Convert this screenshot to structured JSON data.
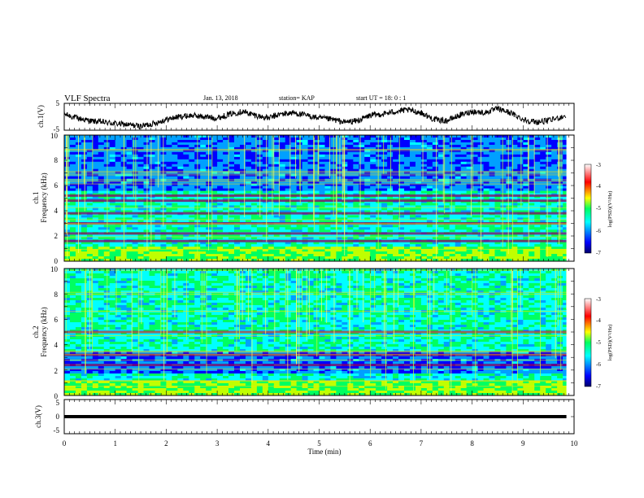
{
  "header": {
    "title": "VLF Spectra",
    "date": "Jan. 13, 2018",
    "station": "station= KAP",
    "start": "start UT =  18: 0  : 1"
  },
  "chart_data": [
    {
      "type": "line",
      "panel": "ch1-amplitude",
      "ylabel": "ch.1(V)",
      "xlim": [
        0,
        10
      ],
      "ylim": [
        -5,
        5
      ],
      "yticks": [
        "5",
        "-5"
      ],
      "x": [
        0.0,
        0.25,
        0.5,
        0.75,
        1.0,
        1.25,
        1.5,
        1.75,
        2.0,
        2.25,
        2.5,
        2.75,
        3.0,
        3.25,
        3.5,
        3.75,
        4.0,
        4.25,
        4.5,
        4.75,
        5.0,
        5.25,
        5.5,
        5.75,
        6.0,
        6.25,
        6.5,
        6.75,
        7.0,
        7.25,
        7.5,
        7.75,
        8.0,
        8.25,
        8.5,
        8.75,
        9.0,
        9.25,
        9.5,
        9.85
      ],
      "y": [
        1.0,
        -0.5,
        -1.5,
        -2.0,
        -2.5,
        -3.0,
        -3.5,
        -2.5,
        -1.0,
        0.0,
        0.5,
        0.0,
        -0.5,
        1.0,
        2.0,
        0.5,
        -0.5,
        1.0,
        1.5,
        0.5,
        -0.5,
        -1.0,
        -2.0,
        -1.5,
        0.5,
        1.0,
        2.0,
        2.5,
        1.5,
        -1.0,
        -1.5,
        0.5,
        2.0,
        1.5,
        3.0,
        1.5,
        -1.0,
        -2.0,
        -1.5,
        0.5
      ]
    },
    {
      "type": "heatmap",
      "panel": "ch1-spectrogram",
      "ylabel_top": "ch.1",
      "ylabel": "Frequency (kHz)",
      "xlim": [
        0,
        10
      ],
      "ylim": [
        0,
        10
      ],
      "yticks": [
        "0",
        "2",
        "4",
        "6",
        "8",
        "10"
      ],
      "colorbar": {
        "label": "log(PSD)(V²/Hz)",
        "range": [
          -7,
          -3
        ],
        "ticks": [
          "-3",
          "-4",
          "-5",
          "-6",
          "-7"
        ]
      },
      "low_power_region_khz": [
        5.5,
        10
      ],
      "dark_bands_khz": [
        5.2,
        4.8,
        3.8,
        3.0,
        2.2,
        1.6
      ],
      "colors": [
        "#00006a",
        "#0000ff",
        "#00a0ff",
        "#00ffff",
        "#00ff60",
        "#c0ff00",
        "#ffff00",
        "#ff8000",
        "#ff0000",
        "#ffffff"
      ]
    },
    {
      "type": "heatmap",
      "panel": "ch2-spectrogram",
      "ylabel_top": "ch.2",
      "ylabel": "Frequency (kHz)",
      "xlim": [
        0,
        10
      ],
      "ylim": [
        0,
        10
      ],
      "yticks": [
        "0",
        "2",
        "4",
        "6",
        "8",
        "10"
      ],
      "colorbar": {
        "label": "log(PSD)(V²/Hz)",
        "range": [
          -7,
          -3
        ],
        "ticks": [
          "-3",
          "-4",
          "-5",
          "-6",
          "-7"
        ]
      },
      "low_power_region_khz": [
        1.8,
        3.5
      ],
      "dark_bands_khz": [
        5.0,
        3.2,
        2.4
      ],
      "colors": [
        "#00006a",
        "#0000ff",
        "#00a0ff",
        "#00ffff",
        "#00ff60",
        "#c0ff00",
        "#ffff00",
        "#ff8000",
        "#ff0000",
        "#ffffff"
      ]
    },
    {
      "type": "line",
      "panel": "ch3-amplitude",
      "ylabel": "ch.3(V)",
      "xlabel": "Time (min)",
      "xlim": [
        0,
        10
      ],
      "ylim": [
        -5,
        5
      ],
      "yticks": [
        "5",
        "0",
        "-5"
      ],
      "xticks": [
        "0",
        "1",
        "2",
        "3",
        "4",
        "5",
        "6",
        "7",
        "8",
        "9",
        "10"
      ],
      "x": [
        0,
        9.85
      ],
      "y": [
        0,
        0
      ]
    }
  ]
}
